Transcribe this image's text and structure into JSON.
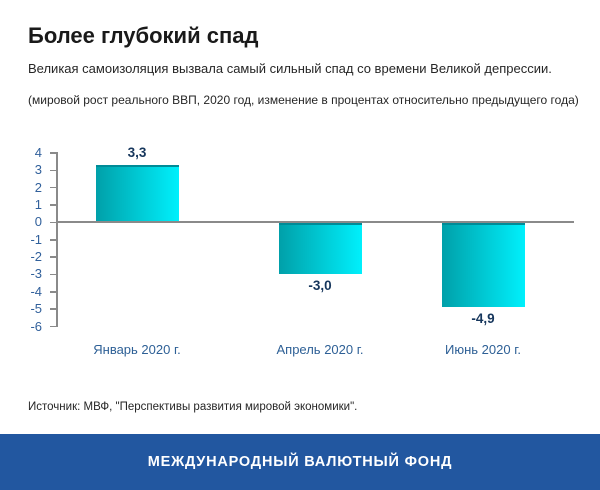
{
  "header": {
    "title": "Более глубокий спад",
    "subtitle": "Великая самоизоляция вызвала самый сильный спад со времени Великой депрессии.",
    "note": "(мировой рост реального ВВП, 2020 год, изменение в процентах относительно предыдущего года)"
  },
  "chart_data": {
    "type": "bar",
    "categories": [
      "Январь 2020 г.",
      "Апрель 2020 г.",
      "Июнь 2020 г."
    ],
    "values": [
      3.3,
      -3.0,
      -4.9
    ],
    "value_labels": [
      "3,3",
      "-3,0",
      "-4,9"
    ],
    "title": "Более глубокий спад",
    "xlabel": "",
    "ylabel": "",
    "ylim": [
      -6,
      4
    ],
    "ytick_step": 1,
    "ytick_labels": [
      "4",
      "3",
      "2",
      "1",
      "0",
      "-1",
      "-2",
      "-3",
      "-4",
      "-5",
      "-6"
    ],
    "grid": false,
    "legend_position": "none",
    "bar_gradient_left": "#00A0A9",
    "bar_gradient_right": "#00F0FC",
    "bar_top_edge_color": "#008B97",
    "axis_color": "#8a8a8a",
    "ytick_label_color": "#31609B",
    "category_label_color": "#2E6096",
    "value_label_color": "#16365C"
  },
  "source": "Источник: МВФ, \"Перспективы развития мировой экономики\".",
  "footer": {
    "text": "МЕЖДУНАРОДНЫЙ ВАЛЮТНЫЙ ФОНД",
    "bg_color": "#2257A0",
    "text_color": "#FFFFFF"
  }
}
